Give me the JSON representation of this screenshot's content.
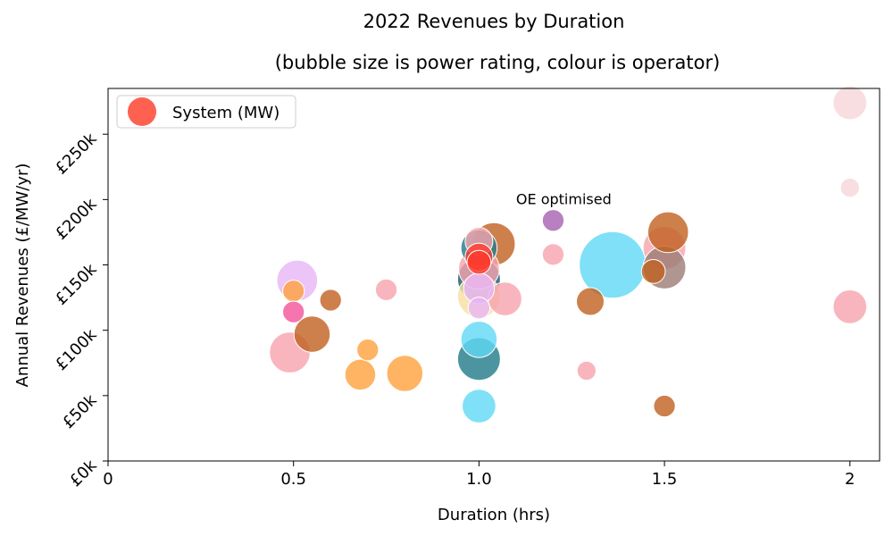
{
  "chart_data": {
    "type": "scatter",
    "title": "2022 Revenues by Duration",
    "subtitle": "(bubble size is power rating, colour is operator)",
    "xlabel": "Duration (hrs)",
    "ylabel": "Annual Revenues (£/MW/yr)",
    "xlim": [
      0,
      2.08
    ],
    "ylim": [
      0,
      285000
    ],
    "xticks": [
      {
        "value": 0,
        "label": "0"
      },
      {
        "value": 0.5,
        "label": "0.5"
      },
      {
        "value": 1.0,
        "label": "1.0"
      },
      {
        "value": 1.5,
        "label": "1.5"
      },
      {
        "value": 2.0,
        "label": "2"
      }
    ],
    "yticks": [
      {
        "value": 0,
        "label": "£0k"
      },
      {
        "value": 50000,
        "label": "£50k"
      },
      {
        "value": 100000,
        "label": "£100k"
      },
      {
        "value": 150000,
        "label": "£150k"
      },
      {
        "value": 200000,
        "label": "£200k"
      },
      {
        "value": 250000,
        "label": "£250k"
      }
    ],
    "legend": {
      "label": "System (MW)",
      "color": "#ff6150",
      "placement": "top-left"
    },
    "annotations": [
      {
        "text": "OE optimised",
        "x": 1.1,
        "y": 200000
      }
    ],
    "colors": {
      "cyan": "#5fd8f5",
      "teal": "#1f7b88",
      "brown": "#c0601f",
      "pink": "#f7a2ad",
      "orange": "#ffa13d",
      "purple": "#a65fb1",
      "lavender": "#e7b5f5",
      "taupe": "#9b7c74",
      "red": "#ff3a2c",
      "magenta": "#f2529a",
      "lightpink": "#f6d6d8",
      "yellow": "#f7dfa0",
      "rose": "#f1a1bc",
      "navy": "#17586a"
    },
    "points": [
      {
        "x": 2.0,
        "y": 274000,
        "mw": 50,
        "color": "lightpink"
      },
      {
        "x": 2.0,
        "y": 209000,
        "mw": 10,
        "color": "lightpink"
      },
      {
        "x": 2.0,
        "y": 118000,
        "mw": 50,
        "color": "pink"
      },
      {
        "x": 1.2,
        "y": 184000,
        "mw": 15,
        "color": "purple"
      },
      {
        "x": 1.2,
        "y": 158000,
        "mw": 15,
        "color": "pink"
      },
      {
        "x": 1.51,
        "y": 175000,
        "mw": 80,
        "color": "brown"
      },
      {
        "x": 1.5,
        "y": 163000,
        "mw": 90,
        "color": "pink"
      },
      {
        "x": 1.5,
        "y": 148000,
        "mw": 90,
        "color": "taupe"
      },
      {
        "x": 1.47,
        "y": 145000,
        "mw": 20,
        "color": "brown"
      },
      {
        "x": 1.36,
        "y": 150000,
        "mw": 250,
        "color": "cyan"
      },
      {
        "x": 1.3,
        "y": 122000,
        "mw": 30,
        "color": "brown"
      },
      {
        "x": 1.29,
        "y": 69000,
        "mw": 10,
        "color": "pink"
      },
      {
        "x": 1.5,
        "y": 42000,
        "mw": 15,
        "color": "brown"
      },
      {
        "x": 1.04,
        "y": 166000,
        "mw": 90,
        "color": "brown"
      },
      {
        "x": 1.0,
        "y": 168000,
        "mw": 30,
        "color": "pink"
      },
      {
        "x": 1.0,
        "y": 163000,
        "mw": 60,
        "color": "teal"
      },
      {
        "x": 1.0,
        "y": 156000,
        "mw": 30,
        "color": "red"
      },
      {
        "x": 1.0,
        "y": 152000,
        "mw": 20,
        "color": "red"
      },
      {
        "x": 1.0,
        "y": 147000,
        "mw": 80,
        "color": "pink"
      },
      {
        "x": 1.0,
        "y": 139000,
        "mw": 90,
        "color": "navy"
      },
      {
        "x": 1.0,
        "y": 132000,
        "mw": 40,
        "color": "lavender"
      },
      {
        "x": 1.0,
        "y": 126000,
        "mw": 90,
        "color": "yellow"
      },
      {
        "x": 1.0,
        "y": 117000,
        "mw": 15,
        "color": "lavender"
      },
      {
        "x": 1.07,
        "y": 124000,
        "mw": 50,
        "color": "pink"
      },
      {
        "x": 1.0,
        "y": 93000,
        "mw": 60,
        "color": "cyan"
      },
      {
        "x": 1.0,
        "y": 78000,
        "mw": 90,
        "color": "teal"
      },
      {
        "x": 1.0,
        "y": 42000,
        "mw": 50,
        "color": "cyan"
      },
      {
        "x": 0.75,
        "y": 131000,
        "mw": 15,
        "color": "pink"
      },
      {
        "x": 0.7,
        "y": 85000,
        "mw": 15,
        "color": "orange"
      },
      {
        "x": 0.68,
        "y": 66000,
        "mw": 40,
        "color": "orange"
      },
      {
        "x": 0.8,
        "y": 67000,
        "mw": 60,
        "color": "orange"
      },
      {
        "x": 0.6,
        "y": 123000,
        "mw": 15,
        "color": "brown"
      },
      {
        "x": 0.55,
        "y": 97000,
        "mw": 60,
        "color": "brown"
      },
      {
        "x": 0.51,
        "y": 138000,
        "mw": 80,
        "color": "lavender"
      },
      {
        "x": 0.5,
        "y": 130000,
        "mw": 15,
        "color": "orange"
      },
      {
        "x": 0.5,
        "y": 114000,
        "mw": 15,
        "color": "magenta"
      },
      {
        "x": 0.49,
        "y": 83000,
        "mw": 80,
        "color": "pink"
      }
    ]
  }
}
